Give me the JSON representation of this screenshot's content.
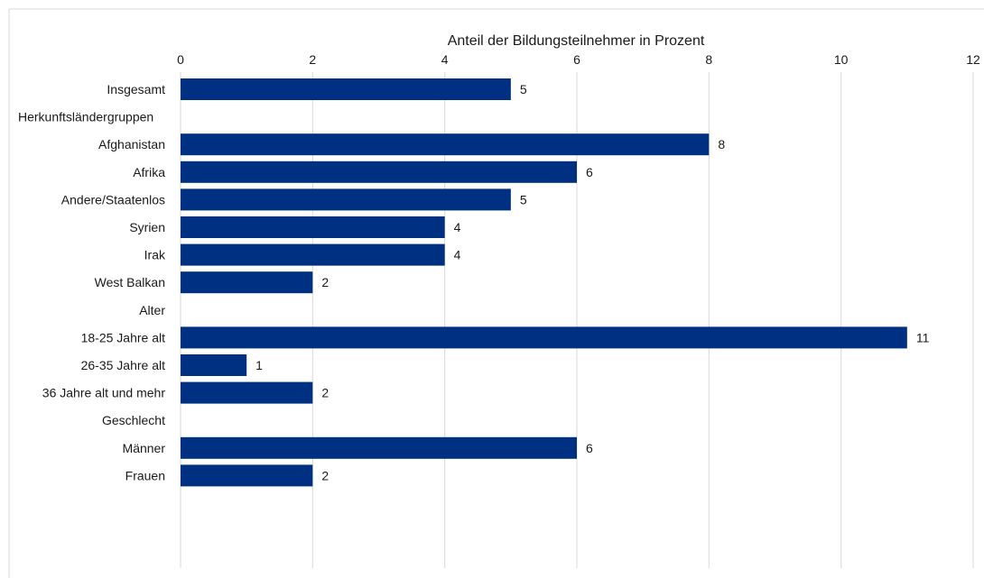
{
  "chart_data": {
    "type": "bar",
    "orientation": "horizontal",
    "title": "Anteil der Bildungsteilnehmer  in Prozent",
    "xlim": [
      0,
      12
    ],
    "xticks": [
      0,
      2,
      4,
      6,
      8,
      10,
      12
    ],
    "grid": true,
    "bar_color": "#003082",
    "rows": [
      {
        "label": "Insgesamt",
        "value": 5
      },
      {
        "label": "Herkunftsländergruppen",
        "value": null
      },
      {
        "label": "Afghanistan",
        "value": 8
      },
      {
        "label": "Afrika",
        "value": 6
      },
      {
        "label": "Andere/Staatenlos",
        "value": 5
      },
      {
        "label": "Syrien",
        "value": 4
      },
      {
        "label": "Irak",
        "value": 4
      },
      {
        "label": "West Balkan",
        "value": 2
      },
      {
        "label": "Alter",
        "value": null
      },
      {
        "label": "18-25 Jahre alt",
        "value": 11
      },
      {
        "label": "26-35 Jahre alt",
        "value": 1
      },
      {
        "label": "36 Jahre alt und mehr",
        "value": 2
      },
      {
        "label": "Geschlecht",
        "value": null
      },
      {
        "label": "Männer",
        "value": 6
      },
      {
        "label": "Frauen",
        "value": 2
      }
    ]
  }
}
